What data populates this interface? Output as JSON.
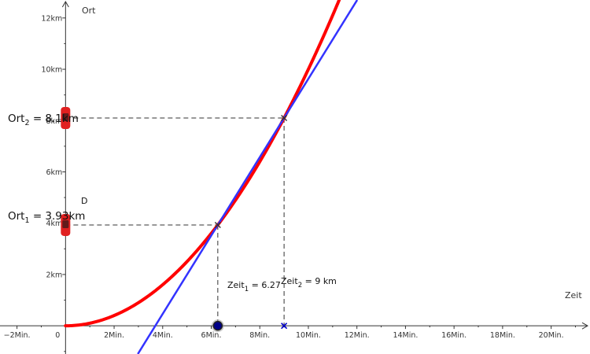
{
  "chart_data": {
    "type": "line",
    "xlabel": "Zeit",
    "ylabel": "Ort",
    "xlim": [
      -2.7,
      21.6
    ],
    "ylim": [
      -1.1,
      12.7
    ],
    "x_ticks": [
      {
        "value": -2,
        "label": "−2Min."
      },
      {
        "value": 0,
        "label": "0"
      },
      {
        "value": 2,
        "label": "2Min."
      },
      {
        "value": 4,
        "label": "4Min."
      },
      {
        "value": 6,
        "label": "6Min."
      },
      {
        "value": 8,
        "label": "8Min."
      },
      {
        "value": 10,
        "label": "10Min."
      },
      {
        "value": 12,
        "label": "12Min."
      },
      {
        "value": 14,
        "label": "14Min."
      },
      {
        "value": 16,
        "label": "16Min."
      },
      {
        "value": 18,
        "label": "18Min."
      },
      {
        "value": 20,
        "label": "20Min."
      }
    ],
    "y_ticks": [
      {
        "value": 2,
        "label": "2km"
      },
      {
        "value": 4,
        "label": "4km"
      },
      {
        "value": 6,
        "label": "6km"
      },
      {
        "value": 8,
        "label": "8km"
      },
      {
        "value": 10,
        "label": "10km"
      },
      {
        "value": 12,
        "label": "12km"
      }
    ],
    "series": [
      {
        "color": "#ff0000",
        "kind": "parabola",
        "coefficient": 0.1,
        "points": [
          [
            0,
            0
          ],
          [
            1,
            0.1
          ],
          [
            2,
            0.4
          ],
          [
            3,
            0.9
          ],
          [
            4,
            1.6
          ],
          [
            5,
            2.5
          ],
          [
            6,
            3.6
          ],
          [
            7,
            4.9
          ],
          [
            8,
            6.4
          ],
          [
            9,
            8.1
          ],
          [
            10,
            10.0
          ],
          [
            11,
            12.1
          ],
          [
            11.25,
            12.66
          ]
        ]
      },
      {
        "color": "#3333ff",
        "kind": "secant",
        "points": [
          [
            6.27,
            3.93
          ],
          [
            9,
            8.1
          ]
        ]
      }
    ],
    "points": [
      {
        "x": 6.27,
        "y": 3.93
      },
      {
        "x": 9,
        "y": 8.1
      }
    ],
    "slider_point": {
      "x": 6.27,
      "y": 0
    },
    "fixed_point": {
      "x": 9,
      "y": 0
    },
    "labels": {
      "ort1_base": "Ort",
      "ort1_sub": "1",
      "ort1_value": " = 3.93km",
      "ort2_base": "Ort",
      "ort2_sub": "2",
      "ort2_value": " = 8.1km",
      "zeit1_base": "Zeit",
      "zeit1_sub": "1",
      "zeit1_value": " = 6.27",
      "zeit2_base": "Zeit",
      "zeit2_sub": "2",
      "zeit2_value": " = 9 km",
      "car_point_label": "D"
    },
    "colors": {
      "curve": "#ff0000",
      "secant": "#3333ff",
      "axis": "#333333",
      "car": "#e02020",
      "cross_mark": "#0000cc",
      "slider": "#222222"
    },
    "grid": false
  }
}
